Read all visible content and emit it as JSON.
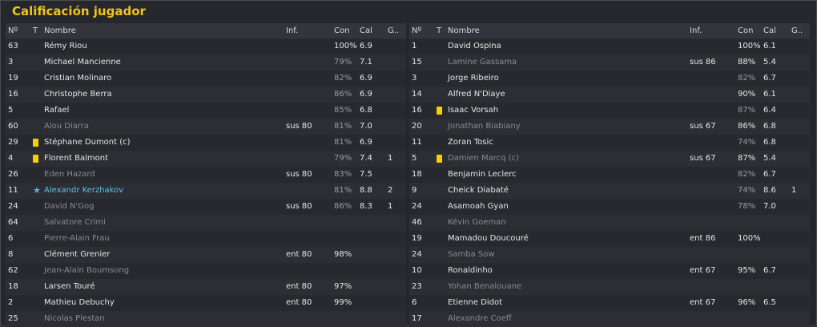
{
  "title": "Calificación jugador",
  "headers": {
    "num": "Nº",
    "t": "T",
    "name": "Nombre",
    "inf": "Inf.",
    "con": "Con",
    "cal": "Cal",
    "g": "G.."
  },
  "left": [
    {
      "num": "63",
      "icon": "",
      "name": "Rémy Riou",
      "inf": "",
      "con": "100%",
      "cal": "6.9",
      "g": "",
      "dim": false,
      "condim": false
    },
    {
      "num": "3",
      "icon": "",
      "name": "Michael Mancienne",
      "inf": "",
      "con": "79%",
      "cal": "7.1",
      "g": "",
      "dim": false,
      "condim": true
    },
    {
      "num": "19",
      "icon": "",
      "name": "Cristian Molinaro",
      "inf": "",
      "con": "82%",
      "cal": "6.9",
      "g": "",
      "dim": false,
      "condim": true
    },
    {
      "num": "16",
      "icon": "",
      "name": "Christophe Berra",
      "inf": "",
      "con": "86%",
      "cal": "6.9",
      "g": "",
      "dim": false,
      "condim": true
    },
    {
      "num": "5",
      "icon": "",
      "name": "Rafael",
      "inf": "",
      "con": "85%",
      "cal": "6.8",
      "g": "",
      "dim": false,
      "condim": true
    },
    {
      "num": "60",
      "icon": "",
      "name": "Alou Diarra",
      "inf": "sus 80",
      "con": "81%",
      "cal": "7.0",
      "g": "",
      "dim": true,
      "condim": true
    },
    {
      "num": "29",
      "icon": "yellow-card",
      "name": "Stéphane Dumont (c)",
      "inf": "",
      "con": "81%",
      "cal": "6.9",
      "g": "",
      "dim": false,
      "condim": true
    },
    {
      "num": "4",
      "icon": "yellow-card",
      "name": "Florent Balmont",
      "inf": "",
      "con": "79%",
      "cal": "7.4",
      "g": "1",
      "dim": false,
      "condim": true
    },
    {
      "num": "26",
      "icon": "",
      "name": "Eden Hazard",
      "inf": "sus 80",
      "con": "83%",
      "cal": "7.5",
      "g": "",
      "dim": true,
      "condim": true
    },
    {
      "num": "11",
      "icon": "star",
      "name": "Alexandr Kerzhakov",
      "inf": "",
      "con": "81%",
      "cal": "8.8",
      "g": "2",
      "dim": false,
      "blue": true,
      "condim": true
    },
    {
      "num": "24",
      "icon": "",
      "name": "David N'Gog",
      "inf": "sus 80",
      "con": "86%",
      "cal": "8.3",
      "g": "1",
      "dim": true,
      "condim": true
    },
    {
      "num": "64",
      "icon": "",
      "name": "Salvatore Crimi",
      "inf": "",
      "con": "",
      "cal": "",
      "g": "",
      "dim": true,
      "condim": false
    },
    {
      "num": "6",
      "icon": "",
      "name": "Pierre-Alain Frau",
      "inf": "",
      "con": "",
      "cal": "",
      "g": "",
      "dim": true,
      "condim": false
    },
    {
      "num": "8",
      "icon": "",
      "name": "Clément Grenier",
      "inf": "ent 80",
      "con": "98%",
      "cal": "",
      "g": "",
      "dim": false,
      "condim": false
    },
    {
      "num": "62",
      "icon": "",
      "name": "Jean-Alain Boumsong",
      "inf": "",
      "con": "",
      "cal": "",
      "g": "",
      "dim": true,
      "condim": false
    },
    {
      "num": "18",
      "icon": "",
      "name": "Larsen Touré",
      "inf": "ent 80",
      "con": "97%",
      "cal": "",
      "g": "",
      "dim": false,
      "condim": false
    },
    {
      "num": "2",
      "icon": "",
      "name": "Mathieu Debuchy",
      "inf": "ent 80",
      "con": "99%",
      "cal": "",
      "g": "",
      "dim": false,
      "condim": false
    },
    {
      "num": "25",
      "icon": "",
      "name": "Nicolas Plestan",
      "inf": "",
      "con": "",
      "cal": "",
      "g": "",
      "dim": true,
      "condim": false
    }
  ],
  "right": [
    {
      "num": "1",
      "icon": "",
      "name": "David Ospina",
      "inf": "",
      "con": "100%",
      "cal": "6.1",
      "g": "",
      "dim": false,
      "condim": false
    },
    {
      "num": "15",
      "icon": "",
      "name": "Lamine Gassama",
      "inf": "sus 86",
      "con": "88%",
      "cal": "5.4",
      "g": "",
      "dim": true,
      "condim": false
    },
    {
      "num": "3",
      "icon": "",
      "name": "Jorge Ribeiro",
      "inf": "",
      "con": "82%",
      "cal": "6.7",
      "g": "",
      "dim": false,
      "condim": true
    },
    {
      "num": "14",
      "icon": "",
      "name": "Alfred N'Diaye",
      "inf": "",
      "con": "90%",
      "cal": "6.1",
      "g": "",
      "dim": false,
      "condim": false
    },
    {
      "num": "16",
      "icon": "yellow-card",
      "name": "Isaac Vorsah",
      "inf": "",
      "con": "87%",
      "cal": "6.4",
      "g": "",
      "dim": false,
      "condim": true
    },
    {
      "num": "20",
      "icon": "",
      "name": "Jonathan Biabiany",
      "inf": "sus 67",
      "con": "86%",
      "cal": "6.8",
      "g": "",
      "dim": true,
      "condim": false
    },
    {
      "num": "11",
      "icon": "",
      "name": "Zoran Tosic",
      "inf": "",
      "con": "74%",
      "cal": "6.8",
      "g": "",
      "dim": false,
      "condim": true
    },
    {
      "num": "5",
      "icon": "yellow-card",
      "name": "Damien Marcq (c)",
      "inf": "sus 67",
      "con": "87%",
      "cal": "5.4",
      "g": "",
      "dim": true,
      "condim": false
    },
    {
      "num": "18",
      "icon": "",
      "name": "Benjamin Leclerc",
      "inf": "",
      "con": "82%",
      "cal": "6.7",
      "g": "",
      "dim": false,
      "condim": true
    },
    {
      "num": "9",
      "icon": "",
      "name": "Cheick Diabaté",
      "inf": "",
      "con": "74%",
      "cal": "8.6",
      "g": "1",
      "dim": false,
      "condim": true
    },
    {
      "num": "24",
      "icon": "",
      "name": "Asamoah Gyan",
      "inf": "",
      "con": "78%",
      "cal": "7.0",
      "g": "",
      "dim": false,
      "condim": true
    },
    {
      "num": "46",
      "icon": "",
      "name": "Kévin Goeman",
      "inf": "",
      "con": "",
      "cal": "",
      "g": "",
      "dim": true,
      "condim": false
    },
    {
      "num": "19",
      "icon": "",
      "name": "Mamadou Doucouré",
      "inf": "ent 86",
      "con": "100%",
      "cal": "",
      "g": "",
      "dim": false,
      "condim": false
    },
    {
      "num": "24",
      "icon": "",
      "name": "Samba Sow",
      "inf": "",
      "con": "",
      "cal": "",
      "g": "",
      "dim": true,
      "condim": false
    },
    {
      "num": "10",
      "icon": "",
      "name": "Ronaldinho",
      "inf": "ent 67",
      "con": "95%",
      "cal": "6.7",
      "g": "",
      "dim": false,
      "condim": false
    },
    {
      "num": "23",
      "icon": "",
      "name": "Yohan Benalouane",
      "inf": "",
      "con": "",
      "cal": "",
      "g": "",
      "dim": true,
      "condim": false
    },
    {
      "num": "6",
      "icon": "",
      "name": "Etienne Didot",
      "inf": "ent 67",
      "con": "96%",
      "cal": "6.5",
      "g": "",
      "dim": false,
      "condim": false
    },
    {
      "num": "17",
      "icon": "",
      "name": "Alexandre Coeff",
      "inf": "",
      "con": "",
      "cal": "",
      "g": "",
      "dim": true,
      "condim": false
    }
  ]
}
